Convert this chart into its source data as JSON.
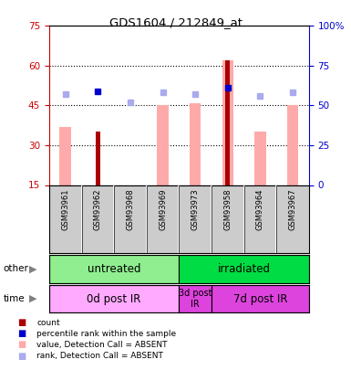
{
  "title": "GDS1604 / 212849_at",
  "samples": [
    "GSM93961",
    "GSM93962",
    "GSM93968",
    "GSM93969",
    "GSM93973",
    "GSM93958",
    "GSM93964",
    "GSM93967"
  ],
  "count_values": [
    null,
    35,
    null,
    null,
    null,
    62,
    null,
    null
  ],
  "percentile_rank_values": [
    null,
    59,
    null,
    null,
    null,
    61,
    null,
    null
  ],
  "value_absent": [
    37,
    null,
    null,
    45,
    46,
    62,
    35,
    45
  ],
  "rank_absent": [
    57,
    null,
    52,
    58,
    57,
    null,
    56,
    58
  ],
  "ylim_left": [
    15,
    75
  ],
  "ylim_right": [
    0,
    100
  ],
  "yticks_left": [
    15,
    30,
    45,
    60,
    75
  ],
  "yticks_right": [
    0,
    25,
    50,
    75,
    100
  ],
  "ytick_right_labels": [
    "0",
    "25",
    "50",
    "75",
    "100%"
  ],
  "group_other": [
    {
      "label": "untreated",
      "start": 0,
      "end": 4,
      "color": "#90ee90"
    },
    {
      "label": "irradiated",
      "start": 4,
      "end": 8,
      "color": "#00dd44"
    }
  ],
  "group_time": [
    {
      "label": "0d post IR",
      "start": 0,
      "end": 4,
      "color": "#ffaaff"
    },
    {
      "label": "3d post\nIR",
      "start": 4,
      "end": 5,
      "color": "#dd44dd"
    },
    {
      "label": "7d post IR",
      "start": 5,
      "end": 8,
      "color": "#dd44dd"
    }
  ],
  "color_count": "#aa0000",
  "color_rank": "#0000cc",
  "color_value_absent": "#ffaaaa",
  "color_rank_absent": "#aaaaee",
  "bg_color": "#ffffff",
  "axis_left_color": "#cc0000",
  "axis_right_color": "#0000cc",
  "chart_bg": "#ffffff",
  "label_bg": "#cccccc"
}
